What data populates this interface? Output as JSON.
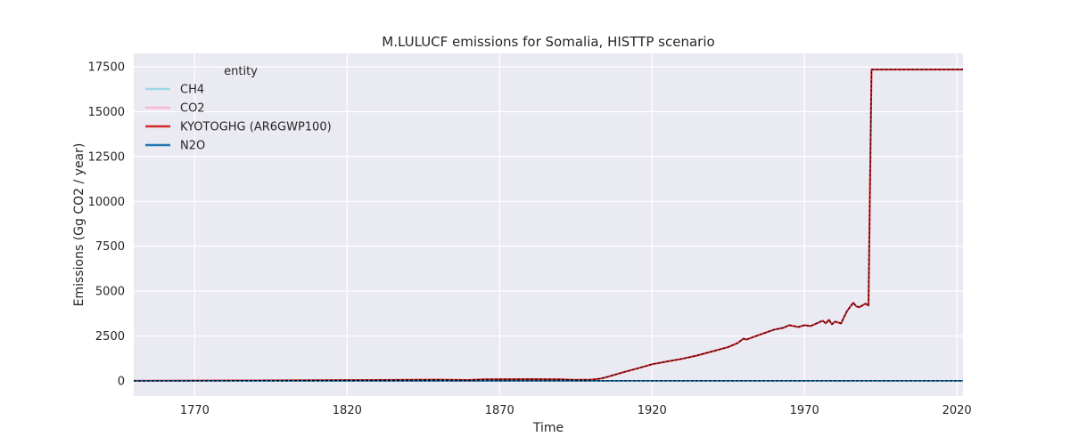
{
  "chart_data": {
    "type": "line",
    "title": "M.LULUCF emissions for Somalia, HISTTP scenario",
    "xlabel": "Time",
    "ylabel": "Emissions (Gg CO2 / year)",
    "xlim": [
      1750,
      2022
    ],
    "ylim": [
      -850,
      18250
    ],
    "xticks": [
      1770,
      1820,
      1870,
      1920,
      1970,
      2020
    ],
    "yticks": [
      0,
      2500,
      5000,
      7500,
      10000,
      12500,
      15000,
      17500
    ],
    "grid": true,
    "legend": {
      "title": "entity",
      "placement": "top-left"
    },
    "series": [
      {
        "name": "CH4",
        "color": "#9edae5",
        "style": "solid",
        "points": [
          [
            1750,
            0
          ],
          [
            2022,
            0
          ]
        ]
      },
      {
        "name": "CO2",
        "color": "#f7b6d2",
        "style": "solid",
        "points": [
          [
            1750,
            0
          ],
          [
            1790,
            20
          ],
          [
            1830,
            40
          ],
          [
            1850,
            60
          ],
          [
            1860,
            40
          ],
          [
            1865,
            80
          ],
          [
            1880,
            90
          ],
          [
            1890,
            80
          ],
          [
            1895,
            50
          ],
          [
            1900,
            60
          ],
          [
            1903,
            120
          ],
          [
            1905,
            200
          ],
          [
            1910,
            450
          ],
          [
            1915,
            680
          ],
          [
            1920,
            920
          ],
          [
            1925,
            1080
          ],
          [
            1930,
            1230
          ],
          [
            1935,
            1420
          ],
          [
            1940,
            1650
          ],
          [
            1945,
            1880
          ],
          [
            1948,
            2100
          ],
          [
            1950,
            2350
          ],
          [
            1951,
            2300
          ],
          [
            1955,
            2550
          ],
          [
            1960,
            2850
          ],
          [
            1963,
            2950
          ],
          [
            1965,
            3100
          ],
          [
            1968,
            3000
          ],
          [
            1970,
            3100
          ],
          [
            1972,
            3050
          ],
          [
            1974,
            3200
          ],
          [
            1976,
            3350
          ],
          [
            1977,
            3200
          ],
          [
            1978,
            3400
          ],
          [
            1979,
            3150
          ],
          [
            1980,
            3300
          ],
          [
            1982,
            3200
          ],
          [
            1984,
            3900
          ],
          [
            1986,
            4350
          ],
          [
            1987,
            4150
          ],
          [
            1988,
            4100
          ],
          [
            1989,
            4200
          ],
          [
            1990,
            4300
          ],
          [
            1991,
            4200
          ],
          [
            1992,
            17350
          ],
          [
            2022,
            17350
          ]
        ]
      },
      {
        "name": "KYOTOGHG (AR6GWP100)",
        "color": "#d62728",
        "style": "solid",
        "points": [
          [
            1750,
            0
          ],
          [
            1790,
            20
          ],
          [
            1830,
            40
          ],
          [
            1850,
            60
          ],
          [
            1860,
            40
          ],
          [
            1865,
            80
          ],
          [
            1880,
            90
          ],
          [
            1890,
            80
          ],
          [
            1895,
            50
          ],
          [
            1900,
            60
          ],
          [
            1903,
            120
          ],
          [
            1905,
            200
          ],
          [
            1910,
            450
          ],
          [
            1915,
            680
          ],
          [
            1920,
            920
          ],
          [
            1925,
            1080
          ],
          [
            1930,
            1230
          ],
          [
            1935,
            1420
          ],
          [
            1940,
            1650
          ],
          [
            1945,
            1880
          ],
          [
            1948,
            2100
          ],
          [
            1950,
            2350
          ],
          [
            1951,
            2300
          ],
          [
            1955,
            2550
          ],
          [
            1960,
            2850
          ],
          [
            1963,
            2950
          ],
          [
            1965,
            3100
          ],
          [
            1968,
            3000
          ],
          [
            1970,
            3100
          ],
          [
            1972,
            3050
          ],
          [
            1974,
            3200
          ],
          [
            1976,
            3350
          ],
          [
            1977,
            3200
          ],
          [
            1978,
            3400
          ],
          [
            1979,
            3150
          ],
          [
            1980,
            3300
          ],
          [
            1982,
            3200
          ],
          [
            1984,
            3900
          ],
          [
            1986,
            4350
          ],
          [
            1987,
            4150
          ],
          [
            1988,
            4100
          ],
          [
            1989,
            4200
          ],
          [
            1990,
            4300
          ],
          [
            1991,
            4200
          ],
          [
            1992,
            17350
          ],
          [
            2022,
            17350
          ]
        ]
      },
      {
        "name": "N2O",
        "color": "#1f77b4",
        "style": "solid",
        "points": [
          [
            1750,
            0
          ],
          [
            2022,
            0
          ]
        ]
      },
      {
        "name": "",
        "color": "#000000",
        "style": "dashed",
        "points": [
          [
            1750,
            0
          ],
          [
            1790,
            20
          ],
          [
            1830,
            40
          ],
          [
            1850,
            60
          ],
          [
            1860,
            40
          ],
          [
            1865,
            80
          ],
          [
            1880,
            90
          ],
          [
            1890,
            80
          ],
          [
            1895,
            50
          ],
          [
            1900,
            60
          ],
          [
            1903,
            120
          ],
          [
            1905,
            200
          ],
          [
            1910,
            450
          ],
          [
            1915,
            680
          ],
          [
            1920,
            920
          ],
          [
            1925,
            1080
          ],
          [
            1930,
            1230
          ],
          [
            1935,
            1420
          ],
          [
            1940,
            1650
          ],
          [
            1945,
            1880
          ],
          [
            1948,
            2100
          ],
          [
            1950,
            2350
          ],
          [
            1951,
            2300
          ],
          [
            1955,
            2550
          ],
          [
            1960,
            2850
          ],
          [
            1963,
            2950
          ],
          [
            1965,
            3100
          ],
          [
            1968,
            3000
          ],
          [
            1970,
            3100
          ],
          [
            1972,
            3050
          ],
          [
            1974,
            3200
          ],
          [
            1976,
            3350
          ],
          [
            1977,
            3200
          ],
          [
            1978,
            3400
          ],
          [
            1979,
            3150
          ],
          [
            1980,
            3300
          ],
          [
            1982,
            3200
          ],
          [
            1984,
            3900
          ],
          [
            1986,
            4350
          ],
          [
            1987,
            4150
          ],
          [
            1988,
            4100
          ],
          [
            1989,
            4200
          ],
          [
            1990,
            4300
          ],
          [
            1991,
            4200
          ],
          [
            1992,
            17350
          ],
          [
            2022,
            17350
          ]
        ]
      },
      {
        "name": "",
        "color": "#000000",
        "style": "dashed",
        "points": [
          [
            1750,
            0
          ],
          [
            2022,
            0
          ]
        ]
      }
    ]
  }
}
